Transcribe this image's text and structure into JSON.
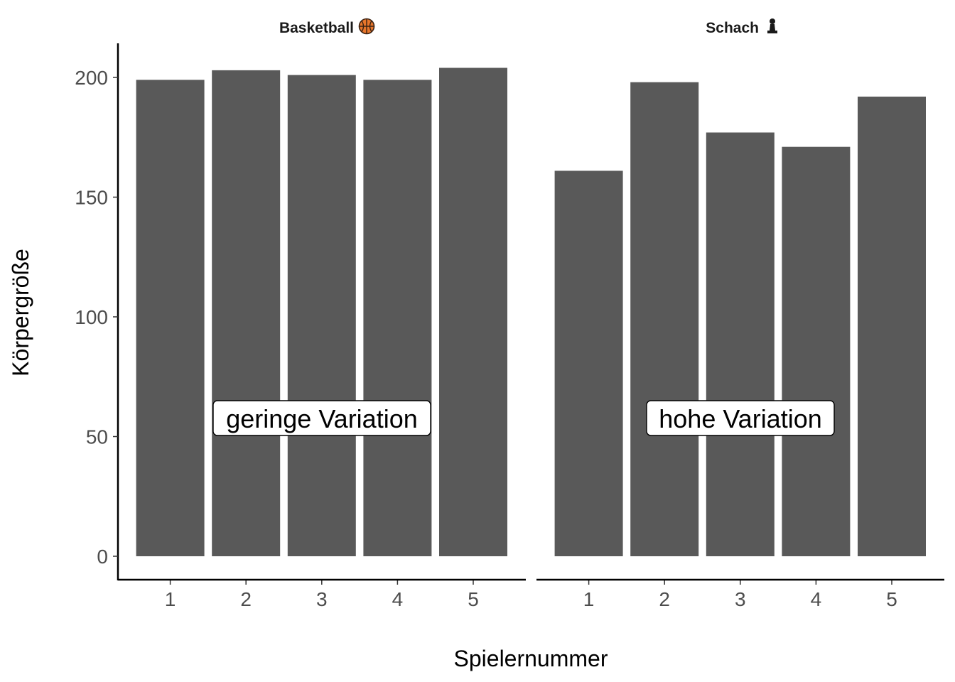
{
  "chart_data": {
    "type": "bar",
    "ylabel": "Körpergröße",
    "xlabel": "Spielernummer",
    "ylim": [
      0,
      210
    ],
    "y_ticks": [
      0,
      50,
      100,
      150,
      200
    ],
    "grid": false,
    "bar_color": "#595959",
    "panels": [
      {
        "title": "Basketball",
        "icon": "basketball-icon",
        "categories": [
          "1",
          "2",
          "3",
          "4",
          "5"
        ],
        "values": [
          199,
          203,
          201,
          199,
          204
        ],
        "annotation": "geringe Variation"
      },
      {
        "title": "Schach",
        "icon": "chess-pawn-icon",
        "categories": [
          "1",
          "2",
          "3",
          "4",
          "5"
        ],
        "values": [
          161,
          198,
          177,
          171,
          192
        ],
        "annotation": "hohe Variation"
      }
    ]
  }
}
